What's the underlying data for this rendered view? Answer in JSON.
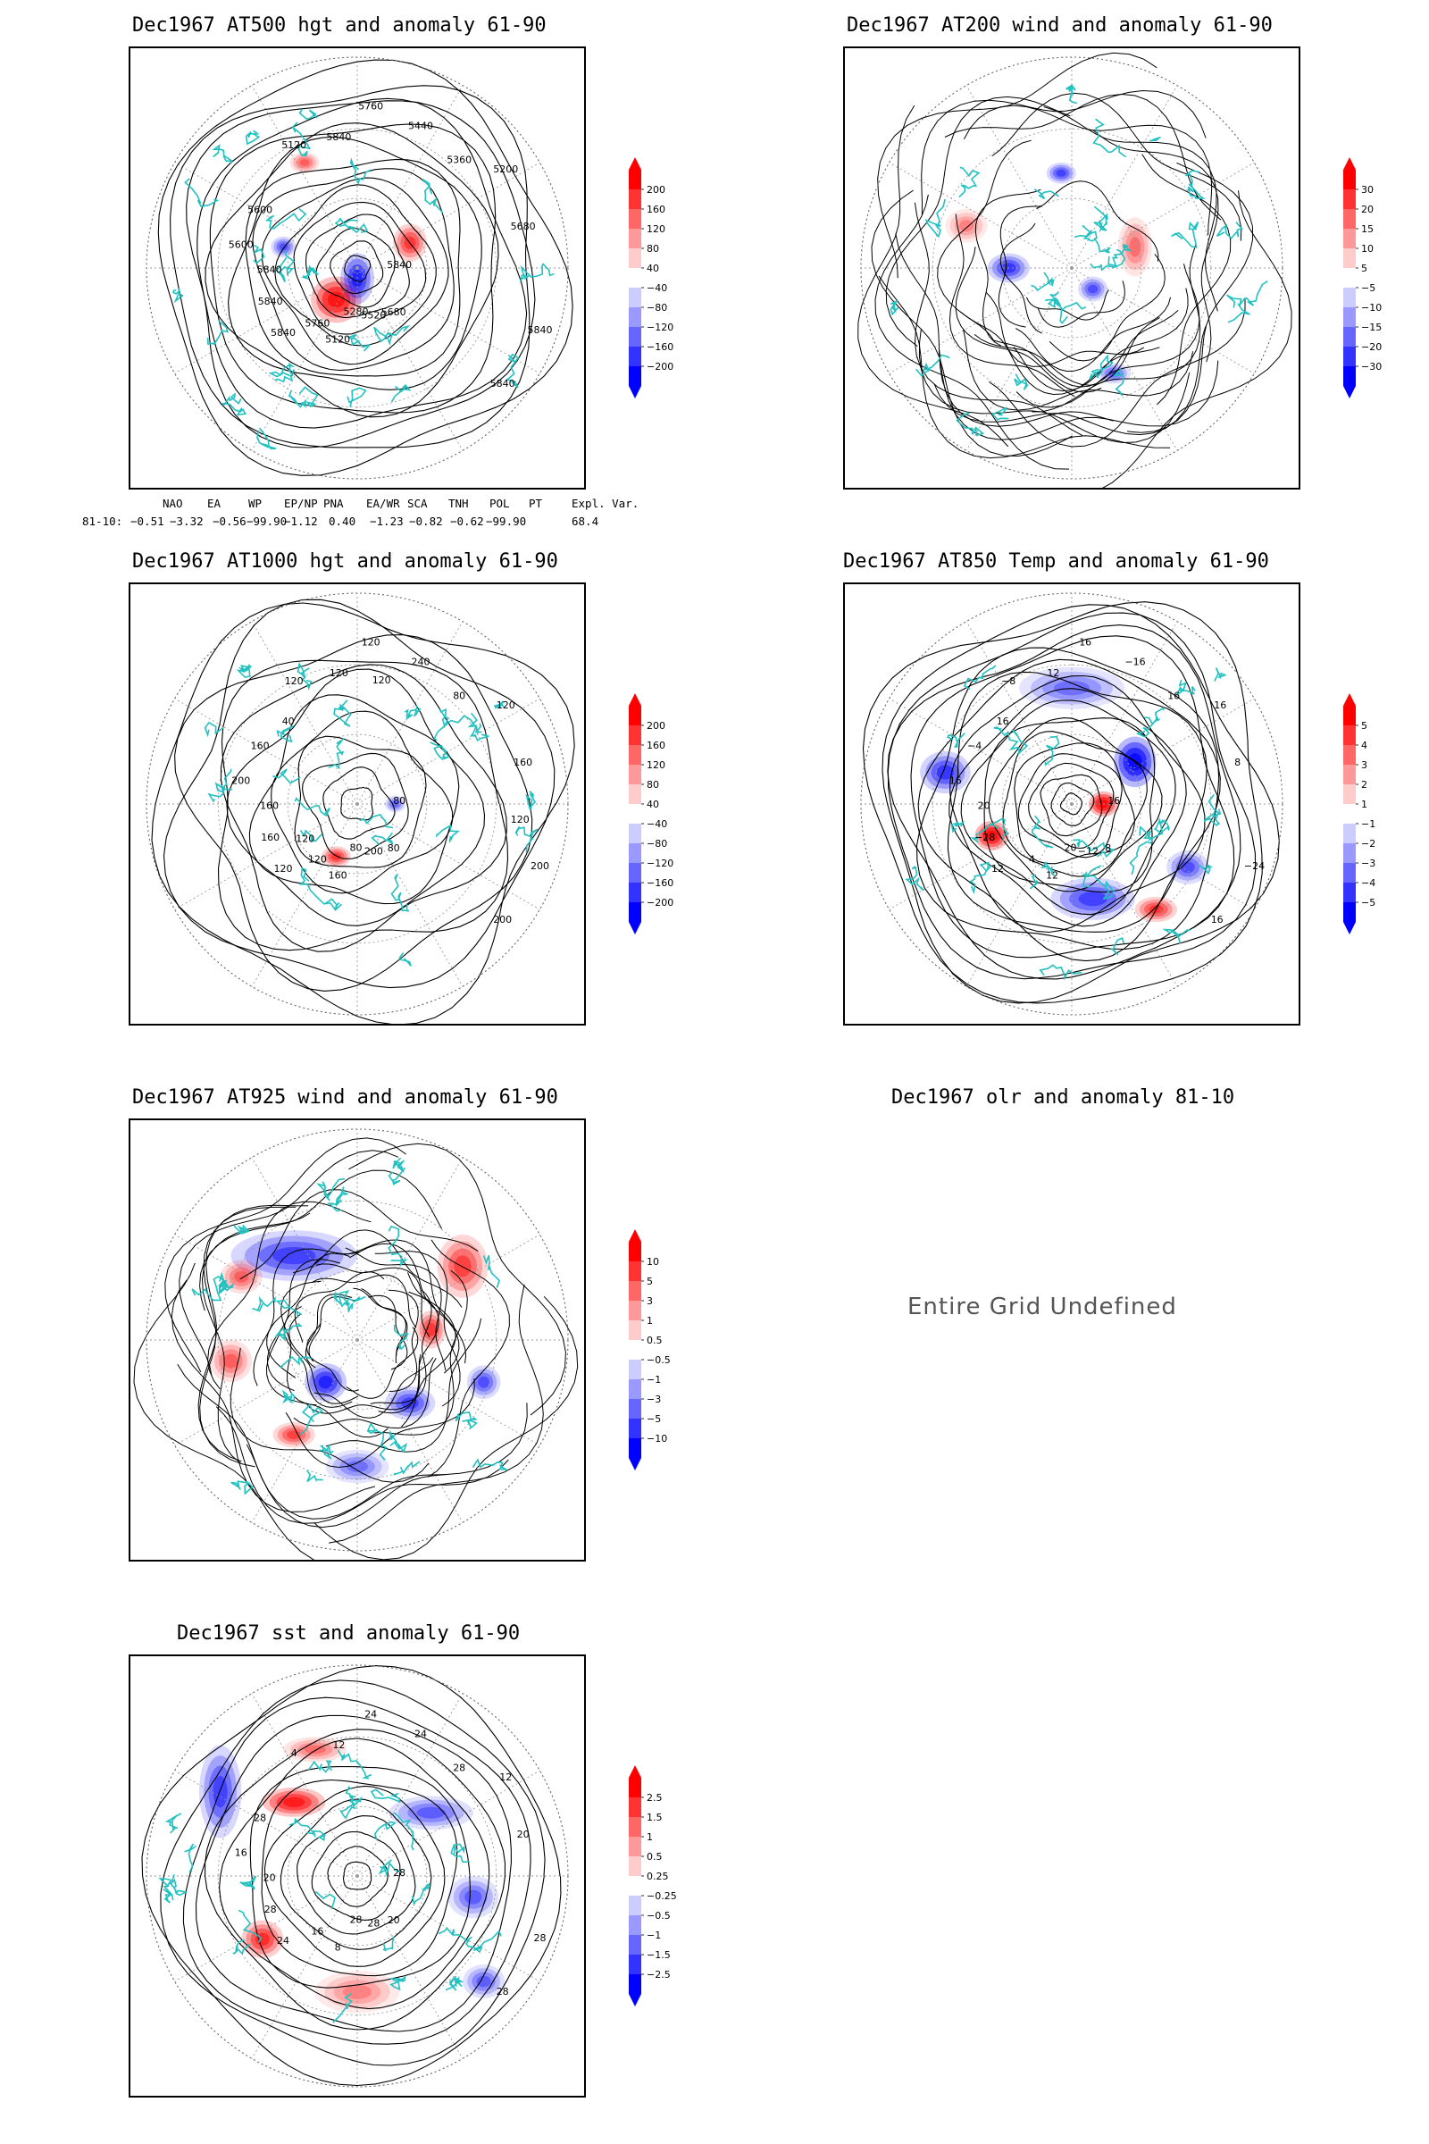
{
  "panels": [
    {
      "id": "p1",
      "title": "Dec1967 AT500 hgt and anomaly 61-90",
      "labels": [
        "5840",
        "5840",
        "5760",
        "5680",
        "5600",
        "5200",
        "5120",
        "5120",
        "5840",
        "5840",
        "5440",
        "5520",
        "5600",
        "5680",
        "5760",
        "5840",
        "5840",
        "5840",
        "5360",
        "5280"
      ],
      "colorbar": [
        "200",
        "160",
        "120",
        "80",
        "40",
        "−40",
        "−80",
        "−120",
        "−160",
        "−200"
      ]
    },
    {
      "id": "p2",
      "title": "Dec1967 AT200 wind and anomaly 61-90",
      "labels": [],
      "colorbar": [
        "30",
        "20",
        "15",
        "10",
        "5",
        "−5",
        "−10",
        "−15",
        "−20",
        "−30"
      ]
    },
    {
      "id": "p3",
      "title": "Dec1967 AT1000 hgt and anomaly 61-90",
      "labels": [
        "80",
        "120",
        "120",
        "80",
        "200",
        "120",
        "160",
        "120",
        "200",
        "160",
        "240",
        "200",
        "160",
        "160",
        "120",
        "120",
        "200",
        "160",
        "80",
        "80",
        "40",
        "120",
        "120",
        "120"
      ],
      "colorbar": [
        "200",
        "160",
        "120",
        "80",
        "40",
        "−40",
        "−80",
        "−120",
        "−160",
        "−200"
      ]
    },
    {
      "id": "p4",
      "title": "Dec1967 AT850 Temp and anomaly 61-90",
      "labels": [
        "16",
        "12",
        "16",
        "8",
        "16",
        "16",
        "12",
        "−8",
        "−24",
        "−28",
        "−16",
        "−12",
        "−4",
        "8",
        "4",
        "12",
        "16",
        "20",
        "16",
        "20",
        "16"
      ],
      "colorbar": [
        "5",
        "4",
        "3",
        "2",
        "1",
        "−1",
        "−2",
        "−3",
        "−4",
        "−5"
      ]
    },
    {
      "id": "p5",
      "title": "Dec1967 AT925 wind and anomaly 61-90",
      "labels": [],
      "colorbar": [
        "10",
        "5",
        "3",
        "1",
        "0.5",
        "−0.5",
        "−1",
        "−3",
        "−5",
        "−10"
      ]
    },
    {
      "id": "p6",
      "title": "Dec1967 olr and anomaly 81-10",
      "undefined_text": "Entire Grid Undefined"
    },
    {
      "id": "p7",
      "title": "Dec1967 sst and anomaly 61-90",
      "labels": [
        "28",
        "24",
        "24",
        "20",
        "16",
        "12",
        "8",
        "4",
        "28",
        "28",
        "24",
        "28",
        "28",
        "20",
        "16",
        "12",
        "28",
        "20",
        "28",
        "28"
      ],
      "colorbar": [
        "2.5",
        "1.5",
        "1",
        "0.5",
        "0.25",
        "−0.25",
        "−0.5",
        "−1",
        "−1.5",
        "−2.5"
      ]
    }
  ],
  "teleconnection": {
    "headers": [
      "NAO",
      "EA",
      "WP",
      "EP/NP",
      "PNA",
      "EA/WR",
      "SCA",
      "TNH",
      "POL",
      "PT",
      "Expl. Var."
    ],
    "row_label": "81-10:",
    "values": [
      "−0.51",
      "−3.32",
      "−0.56",
      "−99.90",
      "−1.12",
      "0.40",
      "−1.23",
      "−0.82",
      "−0.62",
      "−99.90",
      "68.4"
    ]
  },
  "colors": {
    "positive": "#ff0000",
    "negative": "#0000ff",
    "coast": "#22c1c1",
    "contour": "#000000"
  }
}
